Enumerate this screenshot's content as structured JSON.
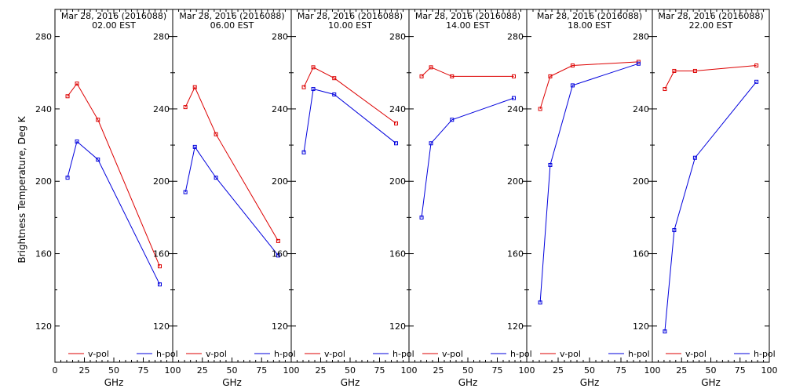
{
  "chart_data": {
    "type": "line",
    "ylabel": "Brightness Temperature, Deg K",
    "xlabel": "GHz",
    "xlim": [
      0,
      100
    ],
    "ylim": [
      100,
      295
    ],
    "yticks": [
      120,
      160,
      200,
      240,
      280
    ],
    "xticks": [
      0,
      25,
      50,
      75,
      100
    ],
    "xticklabels": [
      "0",
      "25",
      "50",
      "75",
      "100"
    ],
    "legend_placement": "bottom",
    "series_style": {
      "v-pol": {
        "color": "#dd0000"
      },
      "h-pol": {
        "color": "#0000dd"
      }
    },
    "panels": [
      {
        "title": "Mar 28, 2016 (2016088)",
        "subtitle": "02.00 EST",
        "series": [
          {
            "name": "v-pol",
            "x": [
              10.7,
              18.7,
              36.5,
              89.0
            ],
            "y": [
              247,
              254,
              234,
              153
            ]
          },
          {
            "name": "h-pol",
            "x": [
              10.7,
              18.7,
              36.5,
              89.0
            ],
            "y": [
              202,
              222,
              212,
              143
            ]
          }
        ]
      },
      {
        "title": "Mar 28, 2016 (2016088)",
        "subtitle": "06.00 EST",
        "series": [
          {
            "name": "v-pol",
            "x": [
              10.7,
              18.7,
              36.5,
              89.0
            ],
            "y": [
              241,
              252,
              226,
              167
            ]
          },
          {
            "name": "h-pol",
            "x": [
              10.7,
              18.7,
              36.5,
              89.0
            ],
            "y": [
              194,
              219,
              202,
              159
            ]
          }
        ]
      },
      {
        "title": "Mar 28, 2016 (2016088)",
        "subtitle": "10.00 EST",
        "series": [
          {
            "name": "v-pol",
            "x": [
              10.7,
              18.7,
              36.5,
              89.0
            ],
            "y": [
              252,
              263,
              257,
              232
            ]
          },
          {
            "name": "h-pol",
            "x": [
              10.7,
              18.7,
              36.5,
              89.0
            ],
            "y": [
              216,
              251,
              248,
              221
            ]
          }
        ]
      },
      {
        "title": "Mar 28, 2016 (2016088)",
        "subtitle": "14.00 EST",
        "series": [
          {
            "name": "v-pol",
            "x": [
              10.7,
              18.7,
              36.5,
              89.0
            ],
            "y": [
              258,
              263,
              258,
              258
            ]
          },
          {
            "name": "h-pol",
            "x": [
              10.7,
              18.7,
              36.5,
              89.0
            ],
            "y": [
              180,
              221,
              234,
              246
            ]
          }
        ]
      },
      {
        "title": "Mar 28, 2016 (2016088)",
        "subtitle": "18.00 EST",
        "series": [
          {
            "name": "v-pol",
            "x": [
              10.7,
              18.7,
              36.5,
              89.0
            ],
            "y": [
              240,
              258,
              264,
              266
            ]
          },
          {
            "name": "h-pol",
            "x": [
              10.7,
              18.7,
              36.5,
              89.0
            ],
            "y": [
              133,
              209,
              253,
              265
            ]
          }
        ]
      },
      {
        "title": "Mar 28, 2016 (2016088)",
        "subtitle": "22.00 EST",
        "series": [
          {
            "name": "v-pol",
            "x": [
              10.7,
              18.7,
              36.5,
              89.0
            ],
            "y": [
              251,
              261,
              261,
              264
            ]
          },
          {
            "name": "h-pol",
            "x": [
              10.7,
              18.7,
              36.5,
              89.0
            ],
            "y": [
              117,
              173,
              213,
              255
            ]
          }
        ]
      }
    ]
  }
}
